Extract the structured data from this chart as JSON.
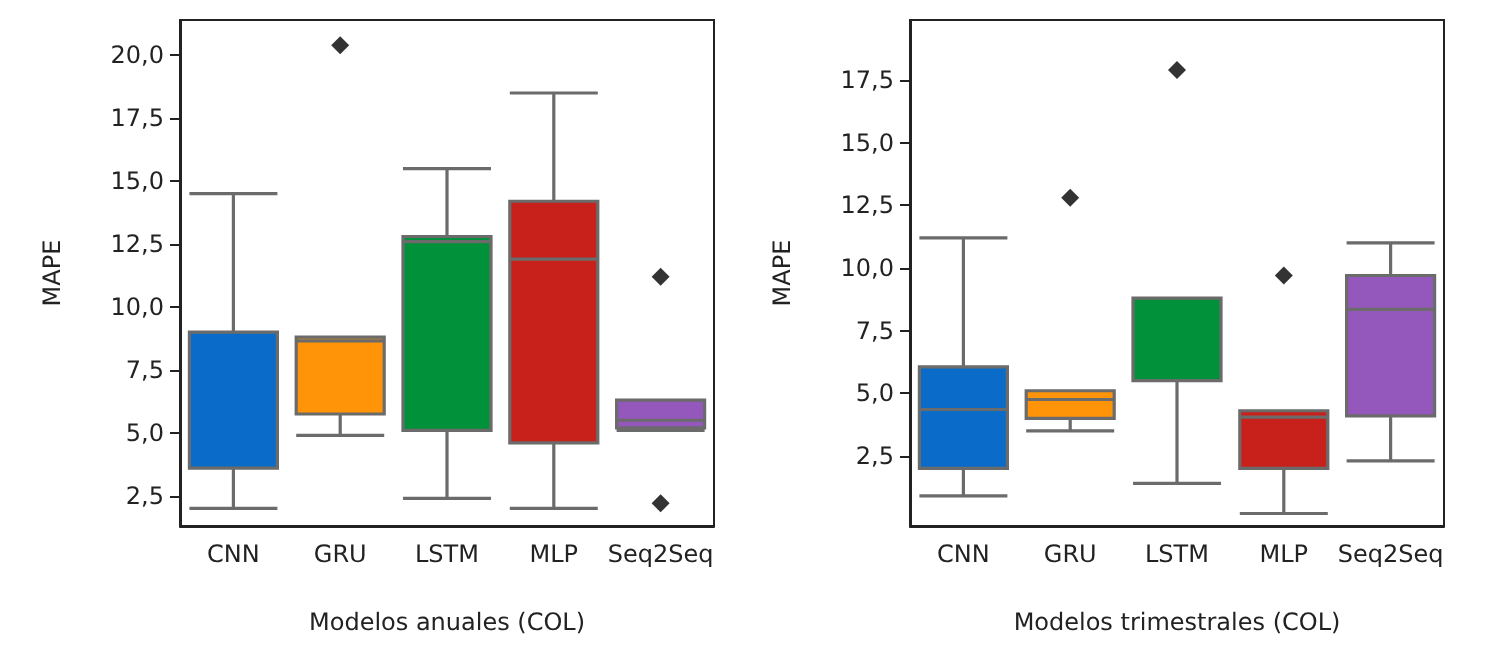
{
  "chart_data": [
    {
      "type": "box",
      "xlabel": "Modelos anuales (COL)",
      "ylabel": "MAPE",
      "categories": [
        "CNN",
        "GRU",
        "LSTM",
        "MLP",
        "Seq2Seq"
      ],
      "colors": [
        "#0a6cc8",
        "#ff9408",
        "#00913a",
        "#c8201a",
        "#9457bc"
      ],
      "boxes": [
        {
          "low": 2.0,
          "q1": 3.6,
          "median": 3.6,
          "q3": 9.0,
          "high": 14.5
        },
        {
          "low": 4.9,
          "q1": 5.75,
          "median": 8.65,
          "q3": 8.8,
          "high": 8.8,
          "outliers": [
            20.4
          ]
        },
        {
          "low": 2.4,
          "q1": 5.1,
          "median": 12.6,
          "q3": 12.8,
          "high": 15.5
        },
        {
          "low": 2.0,
          "q1": 4.6,
          "median": 11.9,
          "q3": 14.2,
          "high": 18.5
        },
        {
          "low": 5.1,
          "q1": 5.2,
          "median": 5.5,
          "q3": 6.3,
          "high": 6.3,
          "outliers": [
            11.2,
            2.2
          ]
        }
      ],
      "ylim": [
        1.3,
        21.4
      ],
      "yticks": [
        {
          "value": 2.5,
          "label": "2,5"
        },
        {
          "value": 5,
          "label": "5,0"
        },
        {
          "value": 7.5,
          "label": "7,5"
        },
        {
          "value": 10,
          "label": "10,0"
        },
        {
          "value": 12.5,
          "label": "12,5"
        },
        {
          "value": 15,
          "label": "15,0"
        },
        {
          "value": 17.5,
          "label": "17,5"
        },
        {
          "value": 20,
          "label": "20,0"
        }
      ],
      "marker": "diamond"
    },
    {
      "type": "box",
      "xlabel": "Modelos trimestrales (COL)",
      "ylabel": "MAPE",
      "categories": [
        "CNN",
        "GRU",
        "LSTM",
        "MLP",
        "Seq2Seq"
      ],
      "colors": [
        "#0a6cc8",
        "#ff9408",
        "#00913a",
        "#c8201a",
        "#9457bc"
      ],
      "boxes": [
        {
          "low": 0.9,
          "q1": 2.0,
          "median": 4.35,
          "q3": 6.05,
          "high": 11.2
        },
        {
          "low": 3.5,
          "q1": 4.0,
          "median": 4.75,
          "q3": 5.1,
          "high": 5.1,
          "outliers": [
            12.8
          ]
        },
        {
          "low": 1.4,
          "q1": 5.5,
          "median": 5.5,
          "q3": 8.8,
          "high": 8.8,
          "outliers": [
            17.9
          ]
        },
        {
          "low": 0.2,
          "q1": 2.0,
          "median": 4.05,
          "q3": 4.3,
          "high": 4.3,
          "outliers": [
            9.7
          ]
        },
        {
          "low": 2.3,
          "q1": 4.1,
          "median": 8.35,
          "q3": 9.7,
          "high": 11.0
        }
      ],
      "ylim": [
        -0.3,
        19.9
      ],
      "yticks": [
        {
          "value": 2.5,
          "label": "2,5"
        },
        {
          "value": 5,
          "label": "5,0"
        },
        {
          "value": 7.5,
          "label": "7,5"
        },
        {
          "value": 10,
          "label": "10,0"
        },
        {
          "value": 12.5,
          "label": "12,5"
        },
        {
          "value": 15,
          "label": "15,0"
        },
        {
          "value": 17.5,
          "label": "17,5"
        }
      ],
      "marker": "diamond"
    }
  ]
}
